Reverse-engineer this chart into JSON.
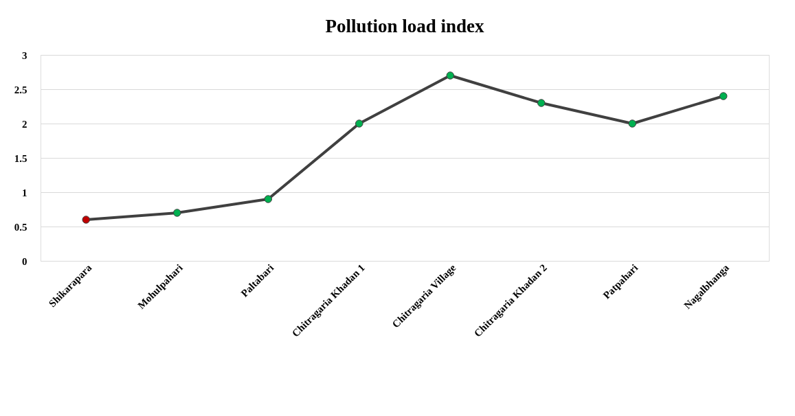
{
  "chart_data": {
    "type": "line",
    "title": "Pollution load index",
    "categories": [
      "Shikarapara",
      "Mohulpahari",
      "Paltabari",
      "Chitragaria Khadan 1",
      "Chitragaria Village",
      "Chitragaria Khadan 2",
      "Patpahari",
      "Nagalbhanga"
    ],
    "series": [
      {
        "color": "#404040",
        "colors": [
          "#c00000",
          "#00b050",
          "#00b050",
          "#00b050",
          "#00b050",
          "#00b050",
          "#00b050",
          "#00b050"
        ],
        "values": [
          0.6,
          0.7,
          0.9,
          2.0,
          2.7,
          2.3,
          2.0,
          2.4
        ]
      }
    ],
    "ylim": [
      0,
      3
    ],
    "yticks": [
      0,
      0.5,
      1,
      1.5,
      2,
      2.5,
      3
    ],
    "grid": "y",
    "marker": "circle",
    "line_style": "solid"
  }
}
